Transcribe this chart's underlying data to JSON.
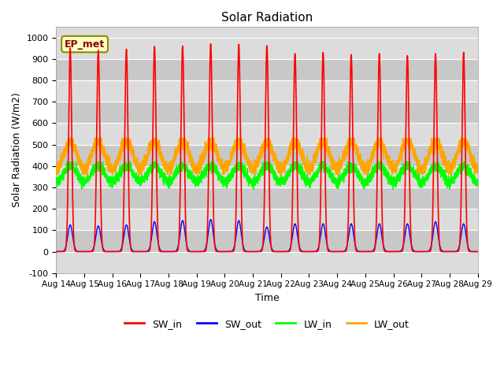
{
  "title": "Solar Radiation",
  "ylabel": "Solar Radiation (W/m2)",
  "xlabel": "Time",
  "ylim": [
    -100,
    1050
  ],
  "yticks": [
    -100,
    0,
    100,
    200,
    300,
    400,
    500,
    600,
    700,
    800,
    900,
    1000
  ],
  "date_start": 14,
  "date_end": 29,
  "n_days": 15,
  "sw_in_peak": [
    950,
    940,
    945,
    958,
    960,
    970,
    968,
    962,
    925,
    930,
    920,
    925,
    915,
    925,
    930
  ],
  "sw_out_peak": [
    125,
    120,
    125,
    140,
    145,
    150,
    145,
    115,
    130,
    130,
    130,
    130,
    130,
    140,
    130
  ],
  "lw_in_base": 325,
  "lw_in_peak": 400,
  "lw_out_base": 385,
  "lw_out_peak": 515,
  "colors": {
    "sw_in": "#FF0000",
    "sw_out": "#0000FF",
    "lw_in": "#00FF00",
    "lw_out": "#FFA500"
  },
  "bg_color_light": "#DCDCDC",
  "bg_color_dark": "#C8C8C8",
  "legend_label": "EP_met",
  "legend_box_color": "#FFFFC8",
  "legend_box_edge": "#8B8B00",
  "fig_width": 6.4,
  "fig_height": 4.8,
  "dpi": 100
}
